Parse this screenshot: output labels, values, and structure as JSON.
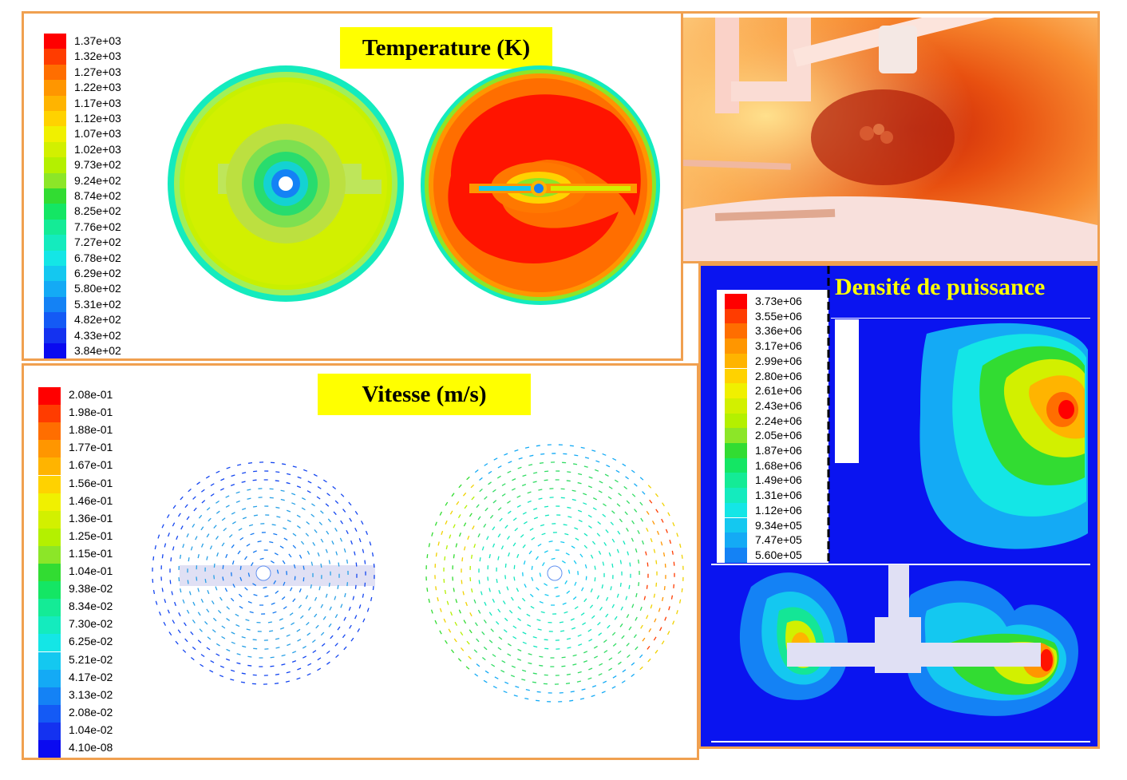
{
  "temperature": {
    "title": "Temperature (K)",
    "legend": [
      "1.37e+03",
      "1.32e+03",
      "1.27e+03",
      "1.22e+03",
      "1.17e+03",
      "1.12e+03",
      "1.07e+03",
      "1.02e+03",
      "9.73e+02",
      "9.24e+02",
      "8.74e+02",
      "8.25e+02",
      "7.76e+02",
      "7.27e+02",
      "6.78e+02",
      "6.29e+02",
      "5.80e+02",
      "5.31e+02",
      "4.82e+02",
      "4.33e+02",
      "3.84e+02"
    ]
  },
  "velocity": {
    "title": "Vitesse (m/s)",
    "legend": [
      "2.08e-01",
      "1.98e-01",
      "1.88e-01",
      "1.77e-01",
      "1.67e-01",
      "1.56e-01",
      "1.46e-01",
      "1.36e-01",
      "1.25e-01",
      "1.15e-01",
      "1.04e-01",
      "9.38e-02",
      "8.34e-02",
      "7.30e-02",
      "6.25e-02",
      "5.21e-02",
      "4.17e-02",
      "3.13e-02",
      "2.08e-02",
      "1.04e-02",
      "4.10e-08"
    ]
  },
  "power": {
    "title": "Densité de puissance",
    "legend": [
      "3.73e+06",
      "3.55e+06",
      "3.36e+06",
      "3.17e+06",
      "2.99e+06",
      "2.80e+06",
      "2.61e+06",
      "2.43e+06",
      "2.24e+06",
      "2.05e+06",
      "1.87e+06",
      "1.68e+06",
      "1.49e+06",
      "1.31e+06",
      "1.12e+06",
      "9.34e+05",
      "7.47e+05",
      "5.60e+05"
    ]
  },
  "colors": {
    "panel_border": "#f0a050",
    "title_bg": "#ffff00",
    "power_bg": "#0a14f0"
  },
  "scale": [
    "#ff0000",
    "#ff3c00",
    "#ff6e00",
    "#ff9600",
    "#ffb400",
    "#ffd200",
    "#f0f000",
    "#d2f000",
    "#b4f000",
    "#8ce628",
    "#32dc32",
    "#14e664",
    "#14eb96",
    "#14ebbe",
    "#14e6e6",
    "#14c8f0",
    "#14aaf5",
    "#1482f5",
    "#145af5",
    "#1432f0",
    "#0a0af0"
  ]
}
